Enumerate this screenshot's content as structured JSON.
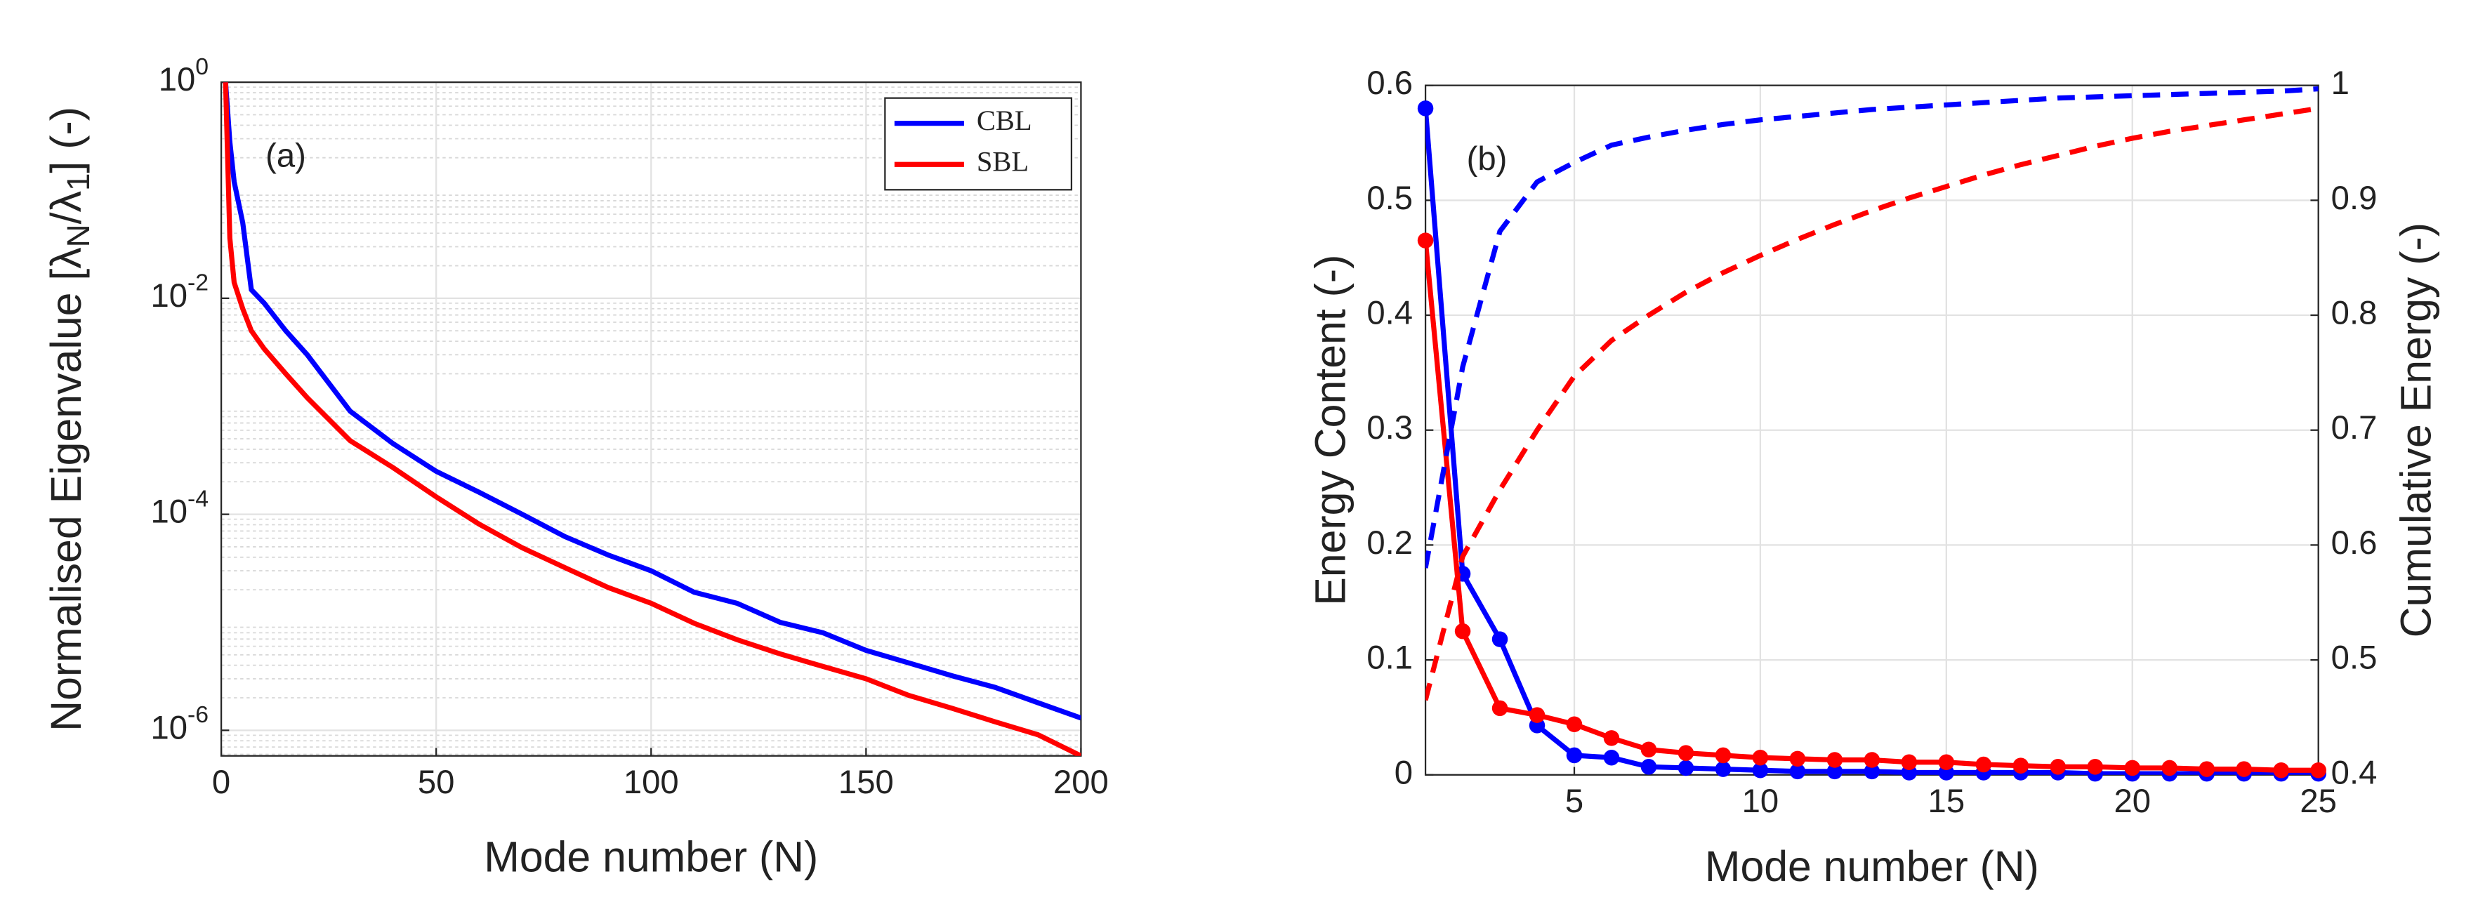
{
  "chart_data": [
    {
      "type": "line",
      "log_y": true,
      "grid": true,
      "legend": "upper right",
      "annotation": "(a)",
      "xlabel": "Mode number (N)",
      "ylabel": [
        {
          "text": "Normalised Eigenvalue [λ"
        },
        {
          "text": "N",
          "sub": true
        },
        {
          "text": "/λ"
        },
        {
          "text": "1",
          "sub": true
        },
        {
          "text": "] (-)"
        }
      ],
      "x": [
        1,
        2,
        3,
        5,
        7,
        10,
        15,
        20,
        30,
        40,
        50,
        60,
        70,
        80,
        90,
        100,
        110,
        120,
        130,
        140,
        150,
        160,
        170,
        180,
        190,
        200
      ],
      "series": [
        {
          "name": "CBL",
          "color": "#0000ff",
          "values": [
            1,
            0.28,
            0.12,
            0.05,
            0.012,
            0.009,
            0.005,
            0.003,
            0.0009,
            0.00045,
            0.00025,
            0.00016,
            0.0001,
            6.2e-05,
            4.2e-05,
            3e-05,
            1.9e-05,
            1.5e-05,
            1e-05,
            8e-06,
            5.5e-06,
            4.2e-06,
            3.2e-06,
            2.5e-06,
            1.8e-06,
            1.3e-06
          ]
        },
        {
          "name": "SBL",
          "color": "#ff0000",
          "values": [
            1,
            0.036,
            0.014,
            0.008,
            0.005,
            0.0034,
            0.002,
            0.0012,
            0.00048,
            0.00027,
            0.000145,
            8.1e-05,
            4.9e-05,
            3.2e-05,
            2.1e-05,
            1.5e-05,
            9.8e-06,
            6.9e-06,
            5.1e-06,
            3.9e-06,
            3e-06,
            2.1e-06,
            1.6e-06,
            1.2e-06,
            9.1e-07,
            5.8e-07
          ]
        }
      ],
      "xlim": [
        0,
        200
      ],
      "xticks": [
        0,
        50,
        100,
        150,
        200
      ],
      "ylim": [
        5.8e-07,
        1
      ],
      "yticks": [
        {
          "value": 1,
          "label": "10",
          "exponent": "0"
        },
        {
          "value": 0.01,
          "label": "10",
          "exponent": "-2"
        },
        {
          "value": 0.0001,
          "label": "10",
          "exponent": "-4"
        },
        {
          "value": 1e-06,
          "label": "10",
          "exponent": "-6"
        }
      ]
    },
    {
      "type": "line",
      "grid": true,
      "annotation": "(b)",
      "xlabel": "Mode number (N)",
      "ylabel": [
        {
          "text": "Energy Content (-)"
        }
      ],
      "y2label": [
        {
          "text": "Cumulative Energy (-)"
        }
      ],
      "x": [
        1,
        2,
        3,
        4,
        5,
        6,
        7,
        8,
        9,
        10,
        11,
        12,
        13,
        14,
        15,
        16,
        17,
        18,
        19,
        20,
        21,
        22,
        23,
        24,
        25
      ],
      "series": [
        {
          "color": "#0000ff",
          "marker": true,
          "values": [
            0.58,
            0.175,
            0.118,
            0.043,
            0.017,
            0.015,
            0.007,
            0.006,
            0.005,
            0.004,
            0.003,
            0.003,
            0.003,
            0.002,
            0.002,
            0.002,
            0.002,
            0.002,
            0.001,
            0.001,
            0.001,
            0.001,
            0.001,
            0.001,
            0.001
          ]
        },
        {
          "color": "#ff0000",
          "marker": true,
          "values": [
            0.465,
            0.125,
            0.058,
            0.052,
            0.044,
            0.032,
            0.022,
            0.019,
            0.017,
            0.015,
            0.014,
            0.013,
            0.013,
            0.011,
            0.011,
            0.009,
            0.008,
            0.007,
            0.007,
            0.006,
            0.006,
            0.005,
            0.005,
            0.004,
            0.004
          ]
        },
        {
          "color": "#0000ff",
          "dashed": true,
          "axis": "y2",
          "values": [
            0.58,
            0.755,
            0.873,
            0.916,
            0.933,
            0.948,
            0.955,
            0.961,
            0.966,
            0.97,
            0.973,
            0.976,
            0.979,
            0.981,
            0.983,
            0.985,
            0.987,
            0.989,
            0.99,
            0.991,
            0.992,
            0.993,
            0.994,
            0.995,
            0.997
          ]
        },
        {
          "color": "#ff0000",
          "dashed": true,
          "axis": "y2",
          "values": [
            0.465,
            0.59,
            0.648,
            0.7,
            0.747,
            0.778,
            0.8,
            0.82,
            0.837,
            0.852,
            0.866,
            0.879,
            0.891,
            0.902,
            0.912,
            0.922,
            0.931,
            0.939,
            0.947,
            0.954,
            0.96,
            0.965,
            0.97,
            0.975,
            0.98
          ]
        }
      ],
      "xlim": [
        1,
        25
      ],
      "xticks": [
        5,
        10,
        15,
        20,
        25
      ],
      "ylim": [
        0,
        0.6
      ],
      "yticks": [
        0,
        0.1,
        0.2,
        0.3,
        0.4,
        0.5,
        0.6
      ],
      "y2lim": [
        0.4,
        1
      ],
      "y2ticks": [
        0.4,
        0.5,
        0.6,
        0.7,
        0.8,
        0.9,
        1
      ]
    }
  ]
}
